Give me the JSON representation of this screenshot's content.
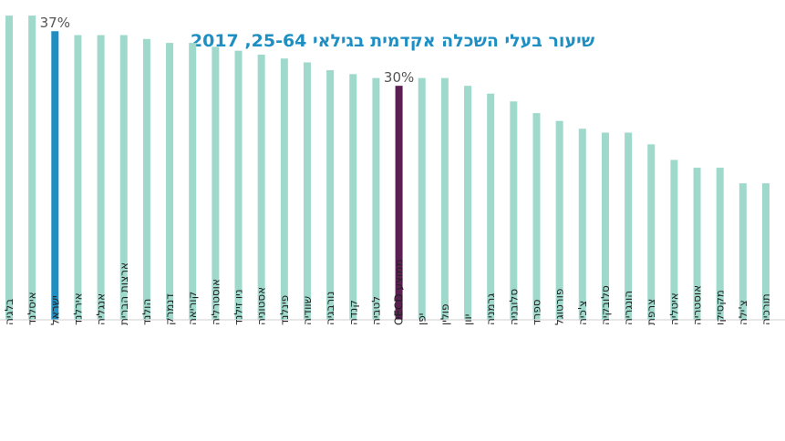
{
  "chart_data": {
    "type": "bar",
    "title": "שיעור בעלי השכלה אקדמית בגילאי 25-64, 2017",
    "categories": [
      "תורכיה",
      "צ'ילה",
      "מקסיקו",
      "אוסטריה",
      "איטליה",
      "צרפת",
      "הונגריה",
      "סלובקיה",
      "צ'כיה",
      "פורטוגל",
      "ספרד",
      "סלובניה",
      "גרמניה",
      "יוון",
      "פולין",
      "יפן",
      "ממוצע OECD",
      "לטביה",
      "קנדה",
      "נורבגיה",
      "שוודיה",
      "פינלנד",
      "אסטוניה",
      "ניו זילנד",
      "אוסטרליה",
      "קוריאה",
      "דנמרק",
      "הולנד",
      "ארצות הברית",
      "אנגליה",
      "אירלנד",
      "ישראל",
      "איסלנד",
      "בלגיה"
    ],
    "values": [
      17.5,
      17.5,
      19.5,
      19.5,
      20.5,
      22.5,
      24,
      24,
      24.5,
      25.5,
      26.5,
      28,
      29,
      30,
      31,
      31,
      30,
      31,
      31.5,
      32,
      33,
      33.5,
      34,
      34.5,
      35,
      35.5,
      35.5,
      36,
      36.5,
      36.5,
      36.5,
      37,
      39,
      39
    ],
    "data_labels": [
      {
        "category": "ממוצע OECD",
        "text": "30%"
      },
      {
        "category": "ישראל",
        "text": "37%"
      }
    ],
    "ylim": [
      0,
      41
    ],
    "grid": false,
    "legend": "none",
    "colors": {
      "default_bar": "#9fd9cc",
      "oecd_bar": "#5c1f52",
      "israel_bar": "#1f8fc3",
      "title": "#1f8fc3"
    }
  }
}
